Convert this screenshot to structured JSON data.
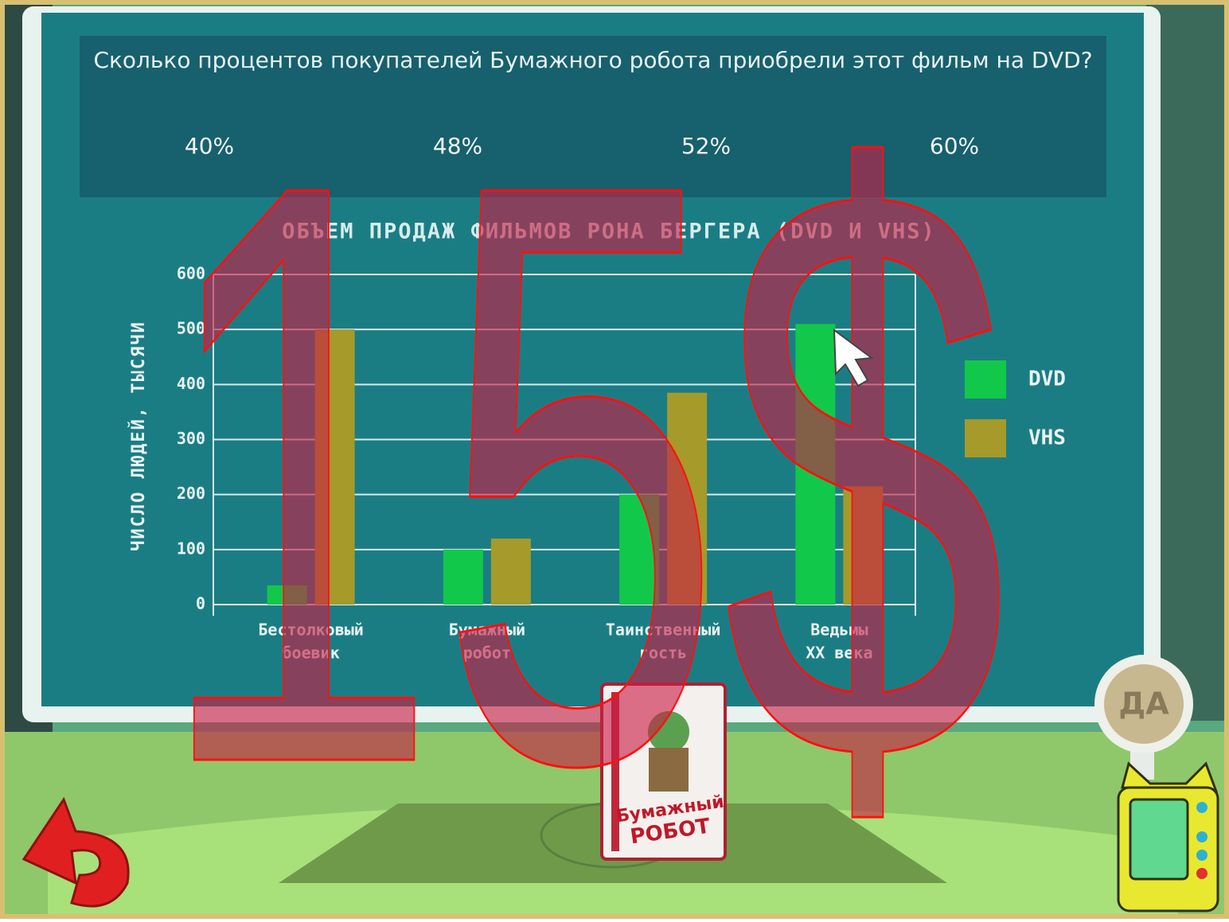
{
  "question": "Сколько процентов покупателей Бумажного робота приобрели этот фильм на DVD?",
  "answers": [
    "40%",
    "48%",
    "52%",
    "60%"
  ],
  "chart_data": {
    "type": "bar",
    "title": "ОБЪЕМ ПРОДАЖ ФИЛЬМОВ РОНА БЕРГЕРА (DVD И VHS)",
    "y_label": "ЧИСЛО ЛЮДЕЙ, ТЫСЯЧИ",
    "categories": [
      [
        "Бестолковый",
        "боевик"
      ],
      [
        "Бумажный",
        "робот"
      ],
      [
        "Таинственный",
        "гость"
      ],
      [
        "Ведьмы",
        "XX века"
      ]
    ],
    "series": [
      {
        "name": "DVD",
        "color": "#12c84a",
        "values": [
          35,
          100,
          200,
          510
        ]
      },
      {
        "name": "VHS",
        "color": "#a59a2a",
        "values": [
          500,
          120,
          385,
          215
        ]
      }
    ],
    "ylim": [
      0,
      600
    ],
    "yticks": [
      0,
      100,
      200,
      300,
      400,
      500,
      600
    ],
    "grid": true,
    "legend": "right"
  },
  "overlay_price": "15$",
  "confirm_button": "ДА",
  "box_label": [
    "Бумажный",
    "РОБОТ"
  ]
}
